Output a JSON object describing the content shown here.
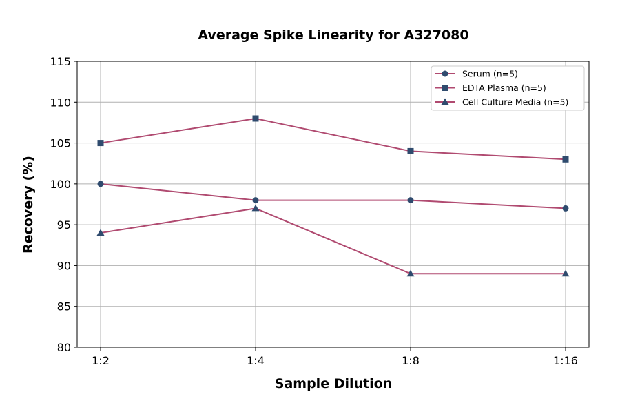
{
  "chart_data": {
    "type": "line",
    "title": "Average Spike Linearity for A327080",
    "xlabel": "Sample Dilution",
    "ylabel": "Recovery (%)",
    "categories": [
      "1:2",
      "1:4",
      "1:8",
      "1:16"
    ],
    "ylim": [
      80,
      115
    ],
    "yticks": [
      80,
      85,
      90,
      95,
      100,
      105,
      110,
      115
    ],
    "grid": true,
    "legend_position": "top-right",
    "line_color": "#b04a70",
    "marker_color": "#2f4b6e",
    "series": [
      {
        "name": "Serum (n=5)",
        "marker": "circle",
        "values": [
          100,
          98,
          98,
          97
        ]
      },
      {
        "name": "EDTA Plasma (n=5)",
        "marker": "square",
        "values": [
          105,
          108,
          104,
          103
        ]
      },
      {
        "name": "Cell Culture Media (n=5)",
        "marker": "triangle",
        "values": [
          94,
          97,
          89,
          89
        ]
      }
    ]
  }
}
